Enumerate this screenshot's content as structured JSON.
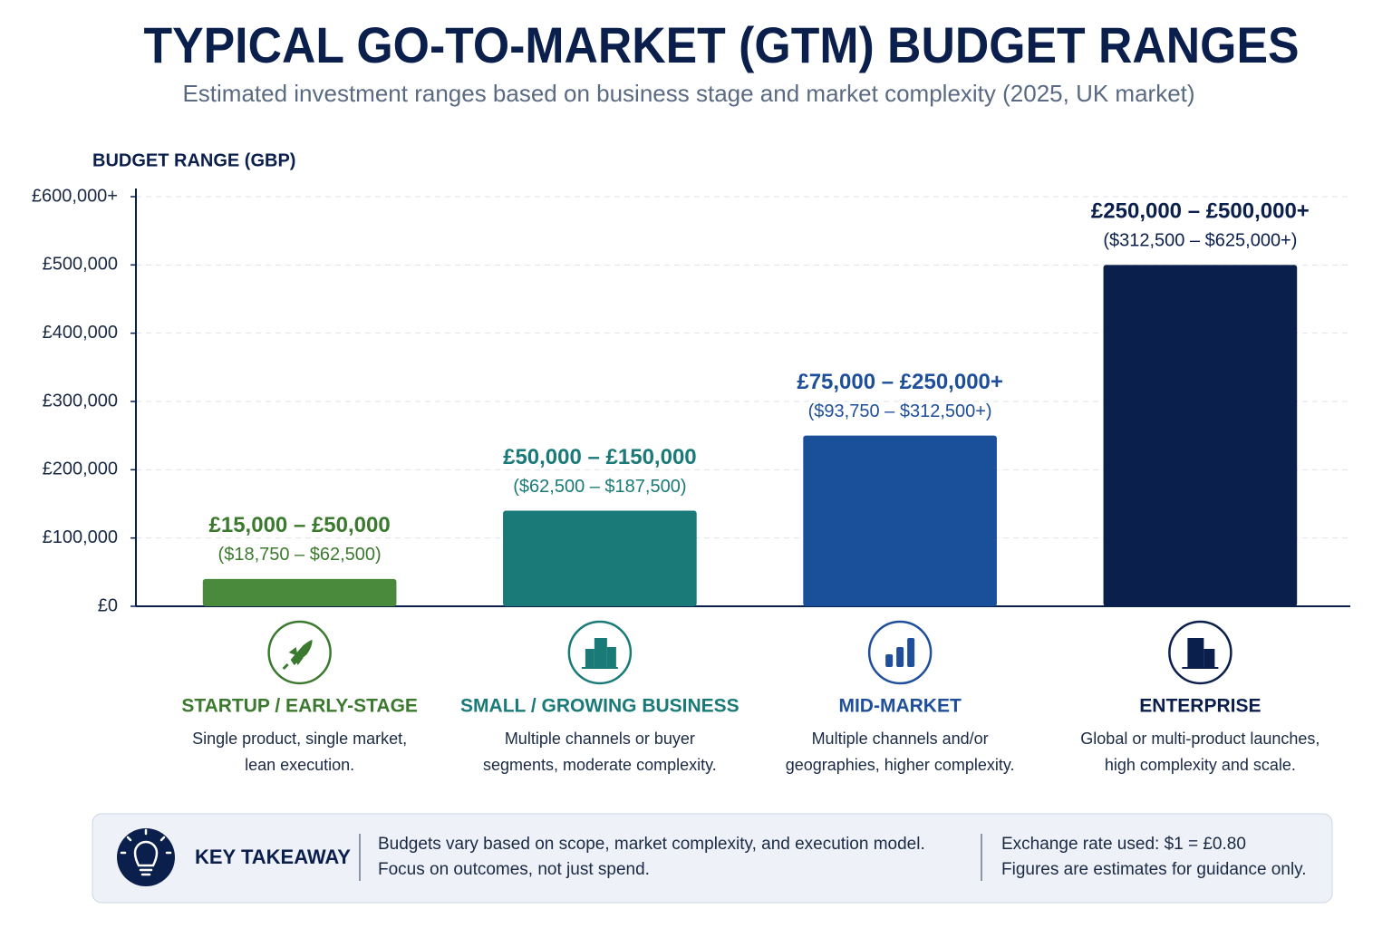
{
  "chart_data": {
    "type": "bar",
    "title": "TYPICAL GO-TO-MARKET (GTM) BUDGET RANGES",
    "subtitle": "Estimated investment ranges based on business stage and market complexity (2025, UK market)",
    "y_label": "BUDGET RANGE (GBP)",
    "categories": [
      "STARTUP / EARLY-STAGE",
      "SMALL / GROWING BUSINESS",
      "MID-MARKET",
      "ENTERPRISE"
    ],
    "descriptions": [
      [
        "Single product, single market,",
        "lean execution."
      ],
      [
        "Multiple channels or buyer",
        "segments, moderate complexity."
      ],
      [
        "Multiple channels and/or",
        "geographies, higher complexity."
      ],
      [
        "Global or multi-product launches,",
        "high complexity and scale."
      ]
    ],
    "values": [
      40000,
      140000,
      250000,
      500000
    ],
    "range_labels": [
      "£15,000 – £50,000",
      "£50,000 – £150,000",
      "£75,000 – £250,000+",
      "£250,000 – £500,000+"
    ],
    "usd_labels": [
      "($18,750 – $62,500)",
      "($62,500 – $187,500)",
      "($93,750 – $312,500+)",
      "($312,500 – $625,000+)"
    ],
    "colors": [
      "#4a8a3c",
      "#1a7a78",
      "#1a4f9a",
      "#0b1f4d"
    ],
    "text_colors": [
      "#3b7a2e",
      "#1a7a78",
      "#1f4f9a",
      "#0b1f4d"
    ],
    "ylim": [
      0,
      600000
    ],
    "yticks": [
      {
        "value": 0,
        "label": "£0"
      },
      {
        "value": 100000,
        "label": "£100,000"
      },
      {
        "value": 200000,
        "label": "£200,000"
      },
      {
        "value": 300000,
        "label": "£300,000"
      },
      {
        "value": 400000,
        "label": "£400,000"
      },
      {
        "value": 500000,
        "label": "£500,000"
      },
      {
        "value": 600000,
        "label": "£600,000+"
      }
    ],
    "grid": true
  },
  "key_takeaway": {
    "heading": "KEY TAKEAWAY",
    "lines": [
      "Budgets vary based on scope, market complexity, and execution model.",
      "Focus on outcomes, not just spend."
    ],
    "notes": [
      "Exchange rate used: $1 = £0.80",
      "Figures are estimates for guidance only."
    ]
  }
}
